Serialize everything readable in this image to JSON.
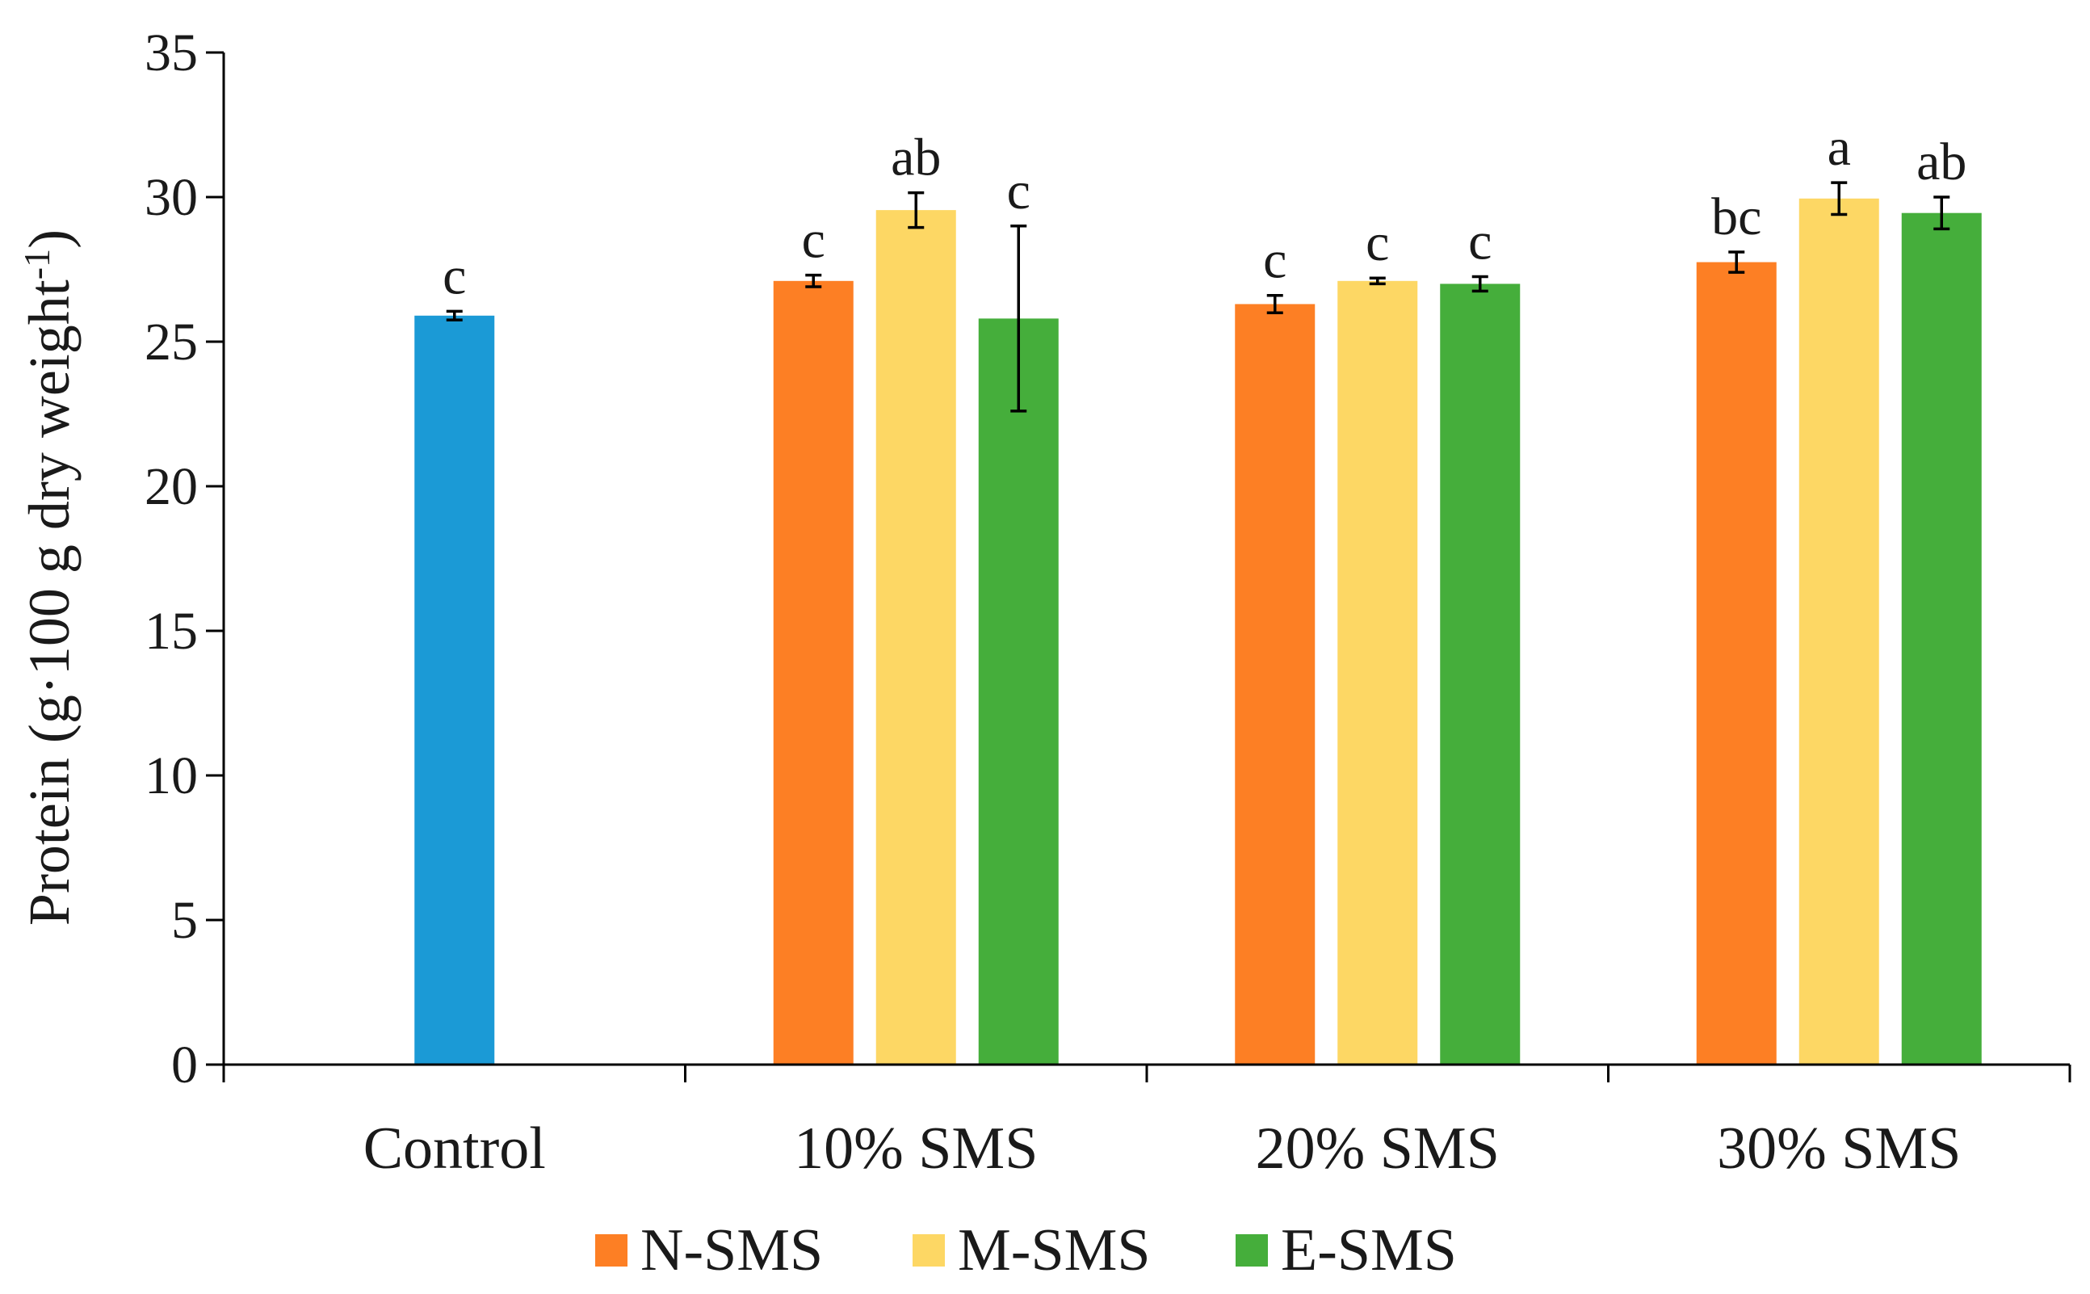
{
  "chart_data": {
    "type": "bar",
    "title": "",
    "xlabel": "",
    "ylabel": "Protein (g·100 g dry weight",
    "ylabel_superscript": "-1",
    "ylabel_close": ")",
    "ylim": [
      0,
      35
    ],
    "ytick_step": 5,
    "yticks": [
      "0",
      "5",
      "10",
      "15",
      "20",
      "25",
      "30",
      "35"
    ],
    "categories": [
      "Control",
      "10% SMS",
      "20% SMS",
      "30% SMS"
    ],
    "groups": [
      {
        "category": "Control",
        "bars": [
          {
            "series": "Control",
            "value": 25.9,
            "error": 0.15,
            "label": "c"
          }
        ]
      },
      {
        "category": "10% SMS",
        "bars": [
          {
            "series": "N-SMS",
            "value": 27.1,
            "error": 0.2,
            "label": "c"
          },
          {
            "series": "M-SMS",
            "value": 29.55,
            "error": 0.6,
            "label": "ab"
          },
          {
            "series": "E-SMS",
            "value": 25.8,
            "error": 3.2,
            "label": "c"
          }
        ]
      },
      {
        "category": "20% SMS",
        "bars": [
          {
            "series": "N-SMS",
            "value": 26.3,
            "error": 0.3,
            "label": "c"
          },
          {
            "series": "M-SMS",
            "value": 27.1,
            "error": 0.1,
            "label": "c"
          },
          {
            "series": "E-SMS",
            "value": 27.0,
            "error": 0.25,
            "label": "c"
          }
        ]
      },
      {
        "category": "30% SMS",
        "bars": [
          {
            "series": "N-SMS",
            "value": 27.75,
            "error": 0.35,
            "label": "bc"
          },
          {
            "series": "M-SMS",
            "value": 29.95,
            "error": 0.55,
            "label": "a"
          },
          {
            "series": "E-SMS",
            "value": 29.45,
            "error": 0.55,
            "label": "ab"
          }
        ]
      }
    ],
    "series_colors": {
      "Control": "#1b9ad6",
      "N-SMS": "#fd7f24",
      "M-SMS": "#fdd764",
      "E-SMS": "#45ae3b"
    },
    "legend": {
      "position": "bottom-center",
      "entries": [
        "N-SMS",
        "M-SMS",
        "E-SMS"
      ]
    },
    "grid": false
  }
}
